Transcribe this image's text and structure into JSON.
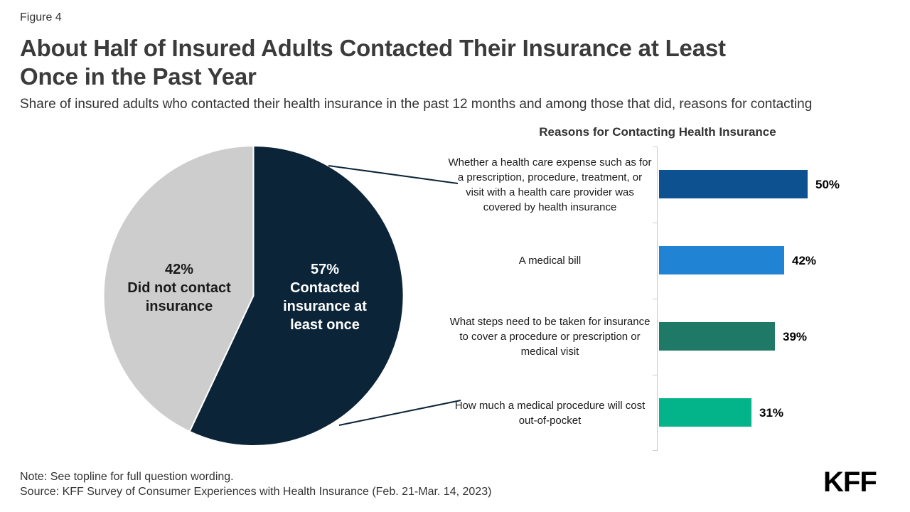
{
  "figure_label": "Figure 4",
  "title_lines": [
    "About Half of Insured Adults Contacted Their Insurance at Least",
    "Once in the Past Year"
  ],
  "subtitle": "Share of insured adults who contacted their health insurance in the past 12 months and among those that did, reasons for contacting",
  "note": "Note: See topline for full question wording.",
  "source": "Source: KFF Survey of Consumer Experiences with Health Insurance (Feb. 21-Mar. 14, 2023)",
  "logo": "KFF",
  "colors": {
    "navy": "#0b2438",
    "gray_slice": "#cdcdcd",
    "bar_dark_blue": "#0e5191",
    "bar_blue": "#2183d4",
    "bar_dark_green": "#1e7a66",
    "bar_teal": "#03b389",
    "axis": "#cccccc"
  },
  "chart_data": [
    {
      "type": "pie",
      "start_angle_deg": 0,
      "direction": "clockwise",
      "slices": [
        {
          "label": "Contacted insurance at least once",
          "pct_label": "57%",
          "value": 57,
          "color": "#0b2438",
          "text_color": "#ffffff"
        },
        {
          "label": "Did not contact insurance",
          "pct_label": "42%",
          "value": 42,
          "color": "#cdcdcd",
          "text_color": "#1a1a1a"
        }
      ]
    },
    {
      "type": "bar",
      "orientation": "horizontal",
      "title": "Reasons for Contacting Health Insurance",
      "categories": [
        "Whether a health care expense such as for a prescription, procedure, treatment, or visit with a health care provider was covered by health insurance",
        "A medical bill",
        "What steps need to be taken for insurance to cover a procedure or prescription or medical visit",
        "How much a medical procedure will cost out-of-pocket"
      ],
      "values": [
        50,
        42,
        39,
        31
      ],
      "value_labels": [
        "50%",
        "42%",
        "39%",
        "31%"
      ],
      "bar_colors": [
        "#0e5191",
        "#2183d4",
        "#1e7a66",
        "#03b389"
      ],
      "value_suffix": "%",
      "xlim": [
        0,
        67
      ],
      "grid": false,
      "legend": false
    }
  ]
}
